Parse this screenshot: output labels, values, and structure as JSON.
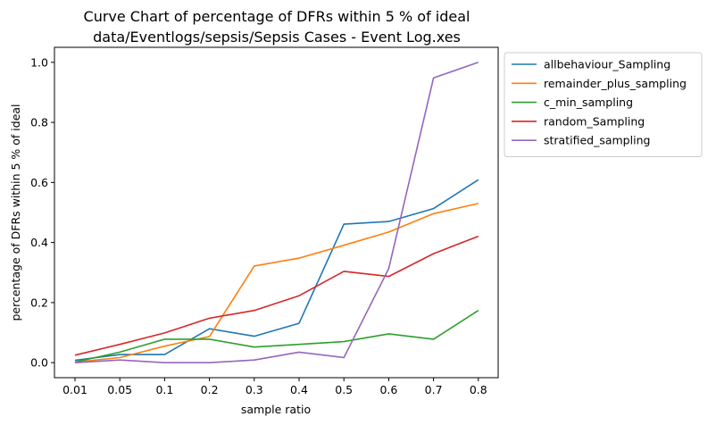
{
  "chart_data": {
    "type": "line",
    "title": "Curve Chart of percentage of DFRs within 5 % of ideal",
    "subtitle": "data/Eventlogs/sepsis/Sepsis Cases - Event Log.xes",
    "xlabel": "sample ratio",
    "ylabel": "percentage of DFRs within 5 % of ideal",
    "categories": [
      "0.01",
      "0.05",
      "0.1",
      "0.2",
      "0.3",
      "0.4",
      "0.5",
      "0.6",
      "0.7",
      "0.8"
    ],
    "ylim": [
      -0.05,
      1.05
    ],
    "yticks": [
      "0.0",
      "0.2",
      "0.4",
      "0.6",
      "0.8",
      "1.0"
    ],
    "grid": false,
    "legend_position": "outside-top-right",
    "series": [
      {
        "name": "allbehaviour_Sampling",
        "color": "#1f77b4",
        "values": [
          0.008,
          0.027,
          0.027,
          0.113,
          0.088,
          0.131,
          0.461,
          0.47,
          0.513,
          0.609
        ]
      },
      {
        "name": "remainder_plus_sampling",
        "color": "#ff7f0e",
        "values": [
          0.002,
          0.017,
          0.055,
          0.087,
          0.322,
          0.348,
          0.391,
          0.435,
          0.496,
          0.53
        ]
      },
      {
        "name": "c_min_sampling",
        "color": "#2ca02c",
        "values": [
          0.002,
          0.035,
          0.078,
          0.078,
          0.052,
          0.061,
          0.07,
          0.096,
          0.078,
          0.174
        ]
      },
      {
        "name": "random_Sampling",
        "color": "#d62728",
        "values": [
          0.025,
          0.061,
          0.099,
          0.148,
          0.174,
          0.223,
          0.304,
          0.287,
          0.363,
          0.421
        ]
      },
      {
        "name": "stratified_sampling",
        "color": "#9467bd",
        "values": [
          0.0,
          0.009,
          0.0,
          0.0,
          0.009,
          0.035,
          0.017,
          0.313,
          0.948,
          1.0
        ]
      }
    ]
  }
}
